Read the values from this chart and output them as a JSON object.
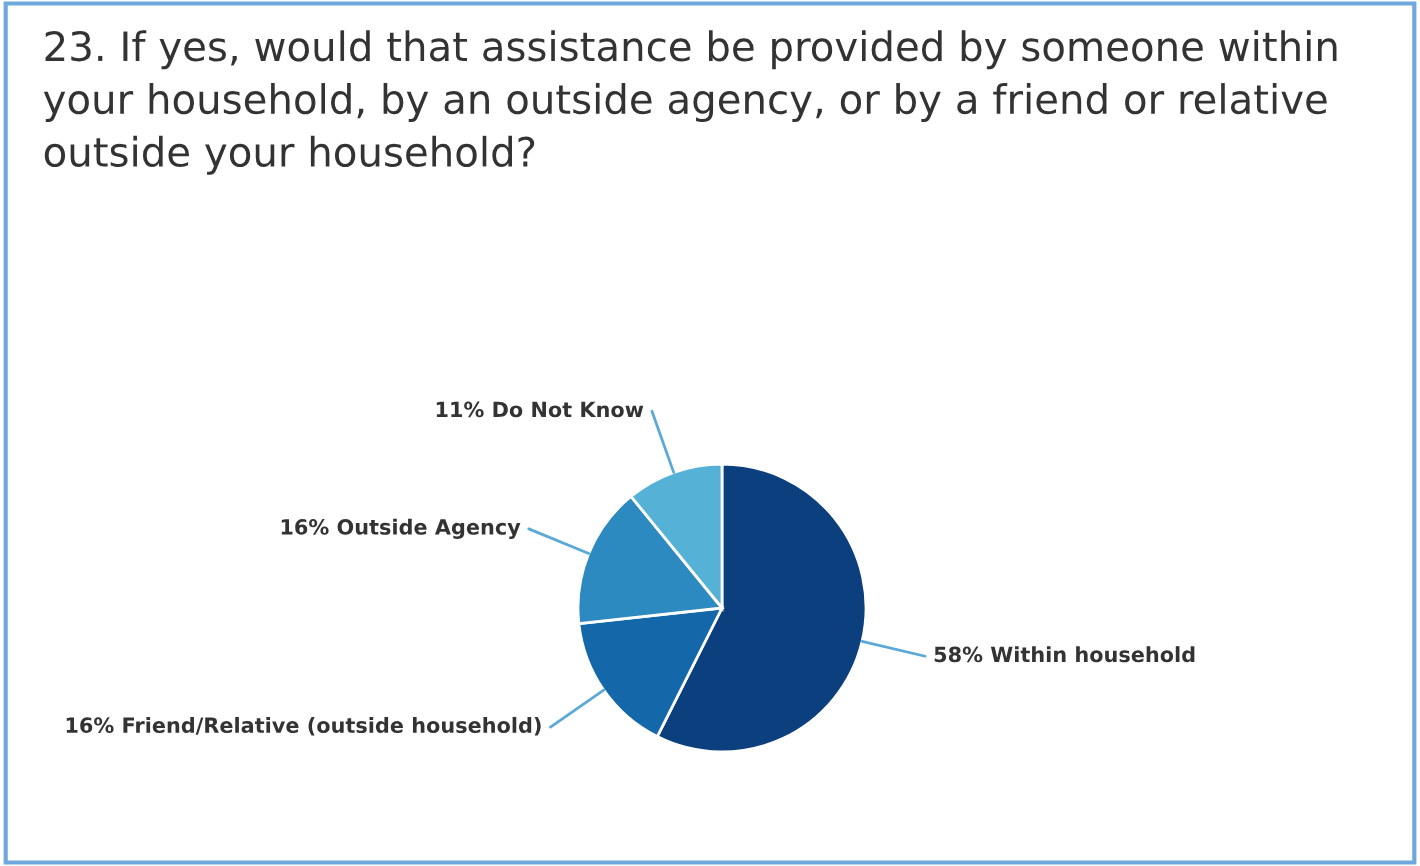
{
  "chart_data": {
    "type": "pie",
    "title": "23. If yes, would that assistance be provided by someone within your household, by an outside agency, or by a friend or relative outside your household?",
    "categories": [
      "Within household",
      "Friend/Relative (outside household)",
      "Outside Agency",
      "Do Not Know"
    ],
    "values": [
      58,
      16,
      16,
      11
    ],
    "value_labels": [
      "58%",
      "16%",
      "16%",
      "11%"
    ],
    "colors": [
      "#0b3f7d",
      "#1467a8",
      "#2d8ac0",
      "#55b2d6"
    ]
  }
}
